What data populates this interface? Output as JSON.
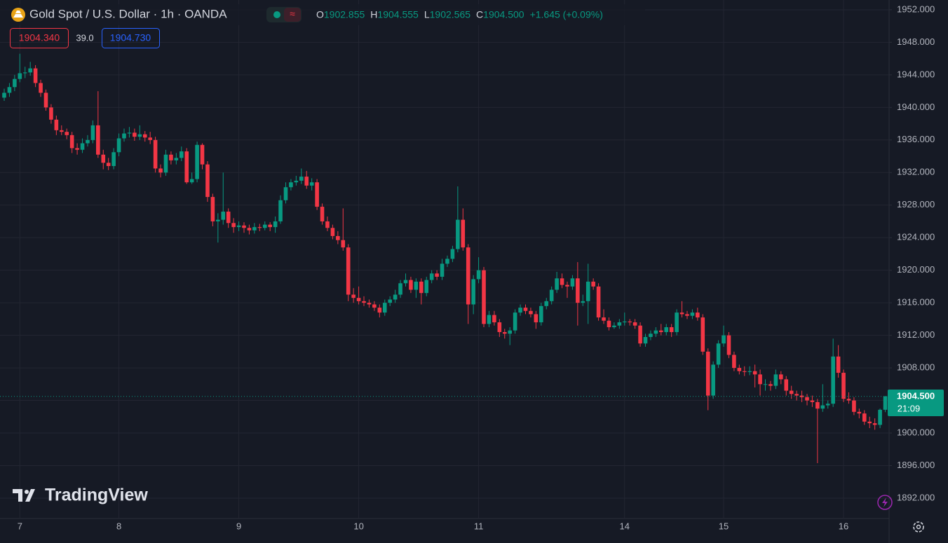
{
  "chart_data": {
    "type": "candlestick",
    "title": "Gold Spot / U.S. Dollar · 1h · OANDA",
    "ohlc_legend": [
      {
        "label": "O",
        "value": "1902.855"
      },
      {
        "label": "H",
        "value": "1904.555"
      },
      {
        "label": "L",
        "value": "1902.565"
      },
      {
        "label": "C",
        "value": "1904.500"
      }
    ],
    "change": "+1.645 (+0.09%)",
    "bid": "1904.340",
    "spread": "39.0",
    "ask": "1904.730",
    "last_price_label": "1904.500",
    "countdown": "21:09",
    "watermark": "TradingView",
    "up_color": "#089981",
    "down_color": "#f23645",
    "grid": true,
    "categories": [
      null,
      null,
      null,
      "7",
      null,
      null,
      null,
      null,
      null,
      null,
      null,
      null,
      null,
      null,
      null,
      null,
      null,
      null,
      null,
      null,
      null,
      null,
      "8",
      null,
      null,
      null,
      null,
      null,
      null,
      null,
      null,
      null,
      null,
      null,
      null,
      null,
      null,
      null,
      null,
      null,
      null,
      null,
      null,
      null,
      null,
      "9",
      null,
      null,
      null,
      null,
      null,
      null,
      null,
      null,
      null,
      null,
      null,
      null,
      null,
      null,
      null,
      null,
      null,
      null,
      null,
      null,
      null,
      null,
      "10",
      null,
      null,
      null,
      null,
      null,
      null,
      null,
      null,
      null,
      null,
      null,
      null,
      null,
      null,
      null,
      null,
      null,
      null,
      null,
      null,
      null,
      null,
      "11",
      null,
      null,
      null,
      null,
      null,
      null,
      null,
      null,
      null,
      null,
      null,
      null,
      null,
      null,
      null,
      null,
      null,
      null,
      null,
      null,
      null,
      null,
      null,
      null,
      null,
      null,
      null,
      "14",
      null,
      null,
      null,
      null,
      null,
      null,
      null,
      null,
      null,
      null,
      null,
      null,
      null,
      null,
      null,
      null,
      null,
      null,
      "15",
      null,
      null,
      null,
      null,
      null,
      null,
      null,
      null,
      null,
      null,
      null,
      null,
      null,
      null,
      null,
      null,
      null,
      null,
      null,
      null,
      null,
      null,
      "16",
      null,
      null,
      null,
      null,
      null,
      null,
      null,
      null
    ],
    "open": [
      1941.2,
      1941.8,
      1942.5,
      1943.5,
      1944.2,
      1944.3,
      1944.8,
      1943.0,
      1941.8,
      1940.0,
      1938.5,
      1937.2,
      1937.0,
      1936.6,
      1935.0,
      1934.8,
      1935.6,
      1936.0,
      1937.8,
      1934.2,
      1933.2,
      1932.8,
      1934.5,
      1936.2,
      1936.8,
      1936.9,
      1936.4,
      1936.7,
      1936.3,
      1936.0,
      1932.5,
      1932.0,
      1934.2,
      1933.5,
      1933.8,
      1934.6,
      1930.8,
      1931.2,
      1935.4,
      1933.0,
      1929.0,
      1926.0,
      1926.2,
      1927.2,
      1925.8,
      1925.3,
      1925.5,
      1925.2,
      1924.9,
      1925.3,
      1925.2,
      1925.6,
      1925.3,
      1926.0,
      1928.6,
      1930.2,
      1930.8,
      1931.0,
      1931.5,
      1930.4,
      1930.8,
      1927.8,
      1926.0,
      1925.2,
      1924.2,
      1923.7,
      1922.8,
      1917.0,
      1916.6,
      1916.2,
      1916.0,
      1915.8,
      1915.4,
      1914.8,
      1916.0,
      1916.4,
      1917.0,
      1918.4,
      1918.8,
      1917.6,
      1918.6,
      1917.2,
      1918.8,
      1919.6,
      1919.2,
      1920.8,
      1921.4,
      1922.6,
      1926.2,
      1922.8,
      1915.8,
      1918.9,
      1920.0,
      1913.4,
      1914.5,
      1913.6,
      1912.4,
      1912.2,
      1912.6,
      1914.8,
      1915.4,
      1915.0,
      1914.6,
      1913.6,
      1915.6,
      1916.2,
      1917.6,
      1919.0,
      1918.2,
      1918.0,
      1919.0,
      1916.0,
      1916.2,
      1918.6,
      1918.0,
      1914.2,
      1913.8,
      1913.0,
      1913.2,
      1913.6,
      1913.7,
      1913.6,
      1913.2,
      1911.0,
      1911.8,
      1912.2,
      1912.6,
      1912.4,
      1913.0,
      1912.4,
      1914.8,
      1914.6,
      1914.4,
      1914.8,
      1914.2,
      1910.0,
      1904.6,
      1908.4,
      1911.0,
      1912.0,
      1909.6,
      1908.0,
      1907.6,
      1907.5,
      1907.6,
      1907.2,
      1906.0,
      1906.0,
      1905.8,
      1907.2,
      1906.6,
      1905.2,
      1904.8,
      1904.6,
      1904.4,
      1904.0,
      1903.8,
      1903.0,
      1903.4,
      1903.6,
      1909.4,
      1907.4,
      1904.2,
      1904.0,
      1902.6,
      1902.4,
      1901.4,
      1901.2,
      1901.0,
      1902.855
    ],
    "high": [
      1942.3,
      1943.0,
      1944.0,
      1946.6,
      1945.0,
      1945.6,
      1945.2,
      1943.4,
      1942.2,
      1940.4,
      1939.0,
      1937.8,
      1937.4,
      1937.0,
      1935.6,
      1936.2,
      1936.6,
      1938.4,
      1942.0,
      1934.8,
      1933.8,
      1935.0,
      1936.8,
      1937.4,
      1937.6,
      1937.4,
      1937.8,
      1937.1,
      1937.0,
      1936.4,
      1933.0,
      1934.8,
      1934.6,
      1934.4,
      1935.2,
      1935.0,
      1932.0,
      1935.8,
      1935.6,
      1933.4,
      1929.4,
      1927.0,
      1932.0,
      1927.6,
      1926.4,
      1926.0,
      1925.9,
      1925.6,
      1925.8,
      1925.7,
      1926.0,
      1925.9,
      1926.6,
      1929.2,
      1930.8,
      1931.2,
      1931.6,
      1932.5,
      1932.2,
      1931.3,
      1931.2,
      1928.2,
      1926.6,
      1925.6,
      1924.8,
      1927.6,
      1923.2,
      1917.8,
      1918.0,
      1916.8,
      1916.4,
      1916.2,
      1915.8,
      1916.4,
      1916.8,
      1917.6,
      1918.8,
      1919.6,
      1919.2,
      1919.0,
      1919.0,
      1919.2,
      1920.0,
      1920.0,
      1921.4,
      1921.8,
      1923.0,
      1930.3,
      1927.6,
      1923.2,
      1919.4,
      1921.6,
      1920.4,
      1915.0,
      1915.0,
      1914.0,
      1912.8,
      1913.0,
      1915.2,
      1915.8,
      1915.8,
      1915.4,
      1915.0,
      1916.0,
      1916.6,
      1918.0,
      1919.8,
      1919.6,
      1918.6,
      1919.4,
      1921.0,
      1917.0,
      1920.8,
      1919.0,
      1918.4,
      1915.2,
      1914.2,
      1913.6,
      1914.0,
      1914.8,
      1914.0,
      1914.0,
      1913.6,
      1912.2,
      1912.6,
      1913.0,
      1913.4,
      1913.4,
      1913.4,
      1915.2,
      1916.2,
      1915.0,
      1915.2,
      1915.4,
      1914.6,
      1910.4,
      1908.8,
      1911.4,
      1913.2,
      1912.4,
      1910.0,
      1908.4,
      1908.2,
      1908.2,
      1908.4,
      1907.8,
      1906.6,
      1906.4,
      1907.8,
      1907.6,
      1907.0,
      1905.8,
      1905.2,
      1905.2,
      1904.8,
      1904.6,
      1904.2,
      1906.0,
      1904.0,
      1911.6,
      1910.8,
      1907.8,
      1905.0,
      1904.4,
      1903.0,
      1902.8,
      1902.0,
      1901.8,
      1903.0,
      1904.555
    ],
    "low": [
      1940.8,
      1941.3,
      1942.0,
      1943.1,
      1943.6,
      1943.9,
      1942.5,
      1941.3,
      1939.6,
      1938.0,
      1936.6,
      1936.6,
      1936.1,
      1934.4,
      1934.2,
      1934.4,
      1935.2,
      1935.6,
      1933.8,
      1932.4,
      1932.3,
      1932.4,
      1934.0,
      1935.8,
      1936.3,
      1935.9,
      1936.0,
      1935.8,
      1935.5,
      1932.0,
      1931.4,
      1931.6,
      1933.0,
      1933.0,
      1933.4,
      1930.6,
      1930.6,
      1930.8,
      1932.4,
      1928.4,
      1925.4,
      1923.4,
      1925.6,
      1925.2,
      1924.6,
      1924.8,
      1924.6,
      1924.4,
      1924.5,
      1924.8,
      1924.9,
      1924.8,
      1924.6,
      1925.7,
      1928.2,
      1929.8,
      1930.4,
      1930.6,
      1930.0,
      1929.8,
      1927.4,
      1925.6,
      1924.8,
      1923.8,
      1923.2,
      1922.4,
      1916.2,
      1916.0,
      1915.8,
      1915.6,
      1915.4,
      1915.0,
      1914.2,
      1914.4,
      1915.6,
      1916.0,
      1916.6,
      1918.0,
      1917.2,
      1916.6,
      1915.8,
      1916.8,
      1918.4,
      1918.8,
      1918.8,
      1920.4,
      1921.0,
      1922.2,
      1922.4,
      1913.4,
      1914.6,
      1918.4,
      1913.0,
      1913.0,
      1913.2,
      1911.8,
      1911.6,
      1910.8,
      1912.2,
      1914.4,
      1914.6,
      1914.2,
      1912.8,
      1913.2,
      1915.2,
      1915.8,
      1917.2,
      1917.8,
      1916.6,
      1917.6,
      1913.2,
      1915.6,
      1913.4,
      1917.6,
      1913.8,
      1913.4,
      1912.6,
      1912.8,
      1912.8,
      1913.2,
      1913.2,
      1912.8,
      1910.6,
      1910.6,
      1911.4,
      1911.8,
      1912.0,
      1912.0,
      1911.8,
      1912.0,
      1914.2,
      1914.0,
      1914.0,
      1913.8,
      1909.6,
      1902.8,
      1904.2,
      1908.0,
      1910.6,
      1909.2,
      1907.6,
      1907.2,
      1907.0,
      1907.1,
      1905.6,
      1904.6,
      1905.2,
      1905.2,
      1905.4,
      1906.0,
      1904.6,
      1904.2,
      1904.0,
      1903.8,
      1903.4,
      1903.2,
      1896.3,
      1902.6,
      1903.0,
      1903.2,
      1906.8,
      1903.8,
      1903.6,
      1902.2,
      1901.8,
      1901.0,
      1900.6,
      1900.4,
      1900.6,
      1902.565
    ],
    "close": [
      1941.8,
      1942.5,
      1943.5,
      1944.2,
      1944.3,
      1944.8,
      1943.0,
      1941.8,
      1940.0,
      1938.5,
      1937.2,
      1937.0,
      1936.6,
      1935.0,
      1934.8,
      1935.6,
      1936.0,
      1937.8,
      1934.2,
      1933.2,
      1932.8,
      1934.5,
      1936.2,
      1936.8,
      1936.9,
      1936.4,
      1936.7,
      1936.3,
      1936.0,
      1932.5,
      1932.0,
      1934.2,
      1933.5,
      1933.8,
      1934.6,
      1930.8,
      1931.2,
      1935.4,
      1933.0,
      1929.0,
      1926.0,
      1926.2,
      1927.2,
      1925.8,
      1925.3,
      1925.5,
      1925.2,
      1924.9,
      1925.3,
      1925.2,
      1925.6,
      1925.3,
      1926.0,
      1928.6,
      1930.2,
      1930.8,
      1931.0,
      1931.5,
      1930.4,
      1930.8,
      1927.8,
      1926.0,
      1925.2,
      1924.2,
      1923.7,
      1922.8,
      1917.0,
      1916.6,
      1916.2,
      1916.0,
      1915.8,
      1915.4,
      1914.8,
      1916.0,
      1916.4,
      1917.0,
      1918.4,
      1918.8,
      1917.6,
      1918.6,
      1917.2,
      1918.8,
      1919.6,
      1919.2,
      1920.8,
      1921.4,
      1922.6,
      1926.2,
      1922.8,
      1915.8,
      1918.9,
      1920.0,
      1913.4,
      1914.5,
      1913.6,
      1912.4,
      1912.2,
      1912.6,
      1914.8,
      1915.4,
      1915.0,
      1914.6,
      1913.6,
      1915.6,
      1916.2,
      1917.6,
      1919.0,
      1918.2,
      1918.0,
      1919.0,
      1916.0,
      1916.2,
      1918.6,
      1918.0,
      1914.2,
      1913.8,
      1913.0,
      1913.2,
      1913.6,
      1913.7,
      1913.6,
      1913.2,
      1911.0,
      1911.8,
      1912.2,
      1912.6,
      1912.4,
      1913.0,
      1912.4,
      1914.8,
      1914.6,
      1914.4,
      1914.8,
      1914.2,
      1910.0,
      1904.6,
      1908.4,
      1911.0,
      1912.0,
      1909.6,
      1908.0,
      1907.6,
      1907.5,
      1907.6,
      1907.2,
      1906.0,
      1906.0,
      1905.8,
      1907.2,
      1906.6,
      1905.2,
      1904.8,
      1904.6,
      1904.4,
      1904.0,
      1903.8,
      1903.0,
      1903.4,
      1903.6,
      1909.4,
      1907.4,
      1904.2,
      1904.0,
      1902.6,
      1902.4,
      1901.4,
      1901.2,
      1901.0,
      1902.855,
      1904.5
    ],
    "ylim": [
      1889.5,
      1953.2
    ],
    "yticks": [
      {
        "value": 1892,
        "label": "1892.000"
      },
      {
        "value": 1896,
        "label": "1896.000"
      },
      {
        "value": 1900,
        "label": "1900.000"
      },
      {
        "value": 1904,
        "label": "1904.000"
      },
      {
        "value": 1908,
        "label": "1908.000"
      },
      {
        "value": 1912,
        "label": "1912.000"
      },
      {
        "value": 1916,
        "label": "1916.000"
      },
      {
        "value": 1920,
        "label": "1920.000"
      },
      {
        "value": 1924,
        "label": "1924.000"
      },
      {
        "value": 1928,
        "label": "1928.000"
      },
      {
        "value": 1932,
        "label": "1932.000"
      },
      {
        "value": 1936,
        "label": "1936.000"
      },
      {
        "value": 1940,
        "label": "1940.000"
      },
      {
        "value": 1944,
        "label": "1944.000"
      },
      {
        "value": 1948,
        "label": "1948.000"
      },
      {
        "value": 1952,
        "label": "1952.000"
      }
    ]
  }
}
